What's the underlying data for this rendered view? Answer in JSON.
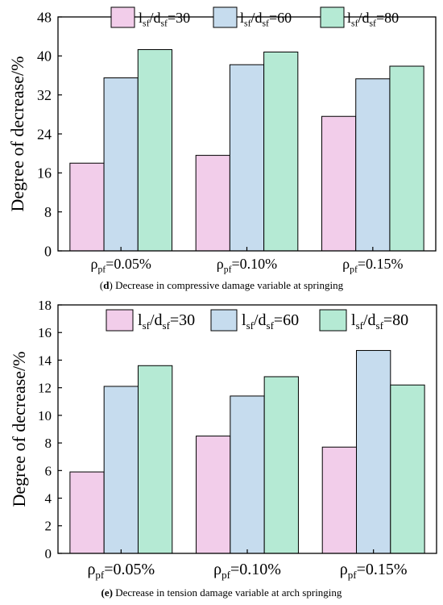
{
  "chart_data": [
    {
      "type": "bar",
      "panel": "d",
      "caption_label": "d",
      "caption_text": " Decrease in compressive damage variable at springing",
      "ylabel": "Degree of decrease/%",
      "ylim": [
        0,
        48
      ],
      "yticks": [
        0,
        8,
        16,
        24,
        32,
        40,
        48
      ],
      "categories": [
        {
          "base": "ρ",
          "sub": "pf",
          "rest": "=0.05%"
        },
        {
          "base": "ρ",
          "sub": "pf",
          "rest": "=0.10%"
        },
        {
          "base": "ρ",
          "sub": "pf",
          "rest": "=0.15%"
        }
      ],
      "legend_position": "top",
      "series": [
        {
          "name": {
            "a": "l",
            "as": "sf",
            "b": "/d",
            "bs": "sf",
            "c": "=30"
          },
          "color": "#f2cdea",
          "values": [
            18.0,
            19.6,
            27.6
          ]
        },
        {
          "name": {
            "a": "l",
            "as": "sf",
            "b": "/d",
            "bs": "sf",
            "c": "=60"
          },
          "color": "#c6dcee",
          "values": [
            35.5,
            38.2,
            35.3
          ]
        },
        {
          "name": {
            "a": "l",
            "as": "sf",
            "b": "/d",
            "bs": "sf",
            "c": "=80"
          },
          "color": "#b5ead4",
          "values": [
            41.3,
            40.8,
            37.9
          ]
        }
      ]
    },
    {
      "type": "bar",
      "panel": "e",
      "caption_label": "(e)",
      "caption_text": " Decrease in tension damage variable at arch springing",
      "ylabel": "Degree of decrease/%",
      "ylim": [
        0,
        18
      ],
      "yticks": [
        0,
        2,
        4,
        6,
        8,
        10,
        12,
        14,
        16,
        18
      ],
      "categories": [
        {
          "base": "ρ",
          "sub": "pf",
          "rest": "=0.05%"
        },
        {
          "base": "ρ",
          "sub": "pf",
          "rest": "=0.10%"
        },
        {
          "base": "ρ",
          "sub": "pf",
          "rest": "=0.15%"
        }
      ],
      "legend_position": "top",
      "series": [
        {
          "name": {
            "a": "l",
            "as": "sf",
            "b": "/d",
            "bs": "sf",
            "c": "=30"
          },
          "color": "#f2cdea",
          "values": [
            5.9,
            8.5,
            7.7
          ]
        },
        {
          "name": {
            "a": "l",
            "as": "sf",
            "b": "/d",
            "bs": "sf",
            "c": "=60"
          },
          "color": "#c6dcee",
          "values": [
            12.1,
            11.4,
            14.7
          ]
        },
        {
          "name": {
            "a": "l",
            "as": "sf",
            "b": "/d",
            "bs": "sf",
            "c": "=80"
          },
          "color": "#b5ead4",
          "values": [
            13.6,
            12.8,
            12.2
          ]
        }
      ]
    }
  ]
}
